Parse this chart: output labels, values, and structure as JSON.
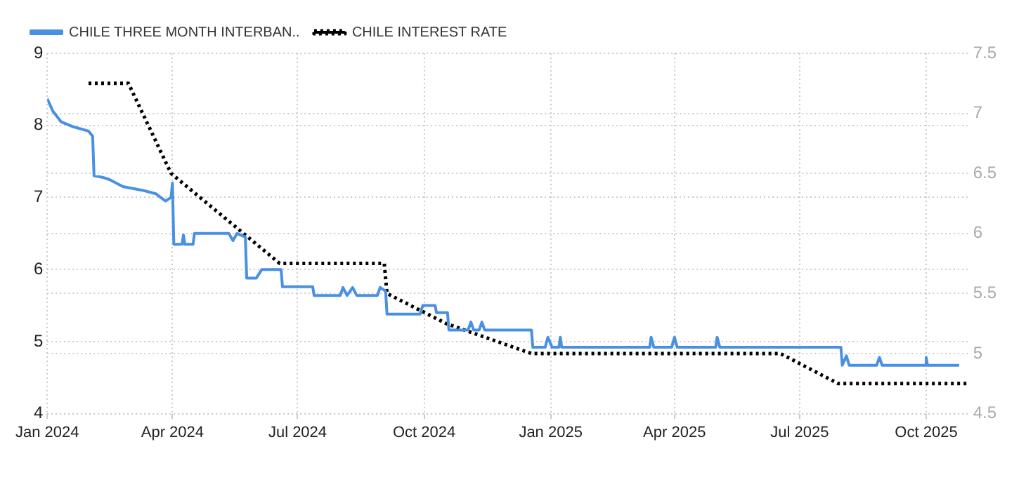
{
  "chart_data": {
    "type": "line",
    "legend": "top left",
    "grid": true,
    "xlim": [
      "2024-01-01",
      "2025-11-01"
    ],
    "xticks": [
      {
        "value": "2024-01-01",
        "label": "Jan 2024"
      },
      {
        "value": "2024-04-01",
        "label": "Apr 2024"
      },
      {
        "value": "2024-07-01",
        "label": "Jul 2024"
      },
      {
        "value": "2024-10-01",
        "label": "Oct 2024"
      },
      {
        "value": "2025-01-01",
        "label": "Jan 2025"
      },
      {
        "value": "2025-04-01",
        "label": "Apr 2025"
      },
      {
        "value": "2025-07-01",
        "label": "Jul 2025"
      },
      {
        "value": "2025-10-01",
        "label": "Oct 2025"
      }
    ],
    "ylim": [
      4,
      9
    ],
    "yticks": [
      4,
      5,
      6,
      7,
      8,
      9
    ],
    "y2lim": [
      4.5,
      7.5
    ],
    "y2ticks": [
      4.5,
      5,
      5.5,
      6,
      6.5,
      7,
      7.5
    ],
    "series": [
      {
        "name": "CHILE THREE MONTH INTERBAN..",
        "color": "#4a90e2",
        "line_style": "solid",
        "x": [
          "2024-01-01",
          "2024-01-05",
          "2024-01-11",
          "2024-01-20",
          "2024-01-31",
          "2024-02-03",
          "2024-02-04",
          "2024-02-10",
          "2024-02-15",
          "2024-02-25",
          "2024-03-10",
          "2024-03-20",
          "2024-03-27",
          "2024-03-31",
          "2024-04-01",
          "2024-04-02",
          "2024-04-08",
          "2024-04-09",
          "2024-04-10",
          "2024-04-16",
          "2024-04-17",
          "2024-05-12",
          "2024-05-15",
          "2024-05-18",
          "2024-05-24",
          "2024-05-25",
          "2024-06-01",
          "2024-06-05",
          "2024-06-19",
          "2024-06-20",
          "2024-07-12",
          "2024-07-13",
          "2024-08-01",
          "2024-08-03",
          "2024-08-06",
          "2024-08-10",
          "2024-08-13",
          "2024-08-28",
          "2024-08-30",
          "2024-09-03",
          "2024-09-04",
          "2024-09-28",
          "2024-09-30",
          "2024-10-09",
          "2024-10-10",
          "2024-10-18",
          "2024-10-19",
          "2024-11-02",
          "2024-11-04",
          "2024-11-06",
          "2024-11-10",
          "2024-11-12",
          "2024-11-14",
          "2024-12-18",
          "2024-12-19",
          "2024-12-28",
          "2024-12-30",
          "2025-01-02",
          "2025-01-07",
          "2025-01-08",
          "2025-01-09",
          "2025-03-14",
          "2025-03-15",
          "2025-03-17",
          "2025-03-30",
          "2025-04-01",
          "2025-04-03",
          "2025-05-01",
          "2025-05-02",
          "2025-05-04",
          "2025-07-31",
          "2025-08-01",
          "2025-08-04",
          "2025-08-06",
          "2025-08-26",
          "2025-08-28",
          "2025-08-30",
          "2025-09-30",
          "2025-10-01",
          "2025-10-02",
          "2025-10-25"
        ],
        "values": [
          8.37,
          8.2,
          8.05,
          7.98,
          7.92,
          7.85,
          7.3,
          7.28,
          7.25,
          7.15,
          7.1,
          7.05,
          6.95,
          7.0,
          7.2,
          6.35,
          6.35,
          6.48,
          6.35,
          6.35,
          6.5,
          6.5,
          6.4,
          6.5,
          6.45,
          5.88,
          5.88,
          6.0,
          6.0,
          5.76,
          5.76,
          5.64,
          5.64,
          5.75,
          5.64,
          5.75,
          5.64,
          5.64,
          5.75,
          5.7,
          5.38,
          5.38,
          5.5,
          5.5,
          5.4,
          5.4,
          5.16,
          5.16,
          5.27,
          5.16,
          5.16,
          5.27,
          5.16,
          5.16,
          4.92,
          4.92,
          5.06,
          4.92,
          4.92,
          5.06,
          4.92,
          4.92,
          5.06,
          4.92,
          4.92,
          5.06,
          4.92,
          4.92,
          5.06,
          4.92,
          4.92,
          4.67,
          4.8,
          4.67,
          4.67,
          4.78,
          4.67,
          4.67,
          4.78,
          4.67,
          4.67
        ]
      },
      {
        "name": "CHILE INTEREST RATE",
        "color": "#000000",
        "line_style": "dotted",
        "axis": "y2",
        "x": [
          "2024-01-31",
          "2024-02-29",
          "2024-03-31",
          "2024-06-18",
          "2024-09-02",
          "2024-09-04",
          "2024-10-17",
          "2024-12-18",
          "2025-06-17",
          "2025-07-29",
          "2025-10-31"
        ],
        "values": [
          7.25,
          7.25,
          6.5,
          5.75,
          5.75,
          5.5,
          5.25,
          5.0,
          5.0,
          4.75,
          4.75
        ]
      }
    ]
  }
}
